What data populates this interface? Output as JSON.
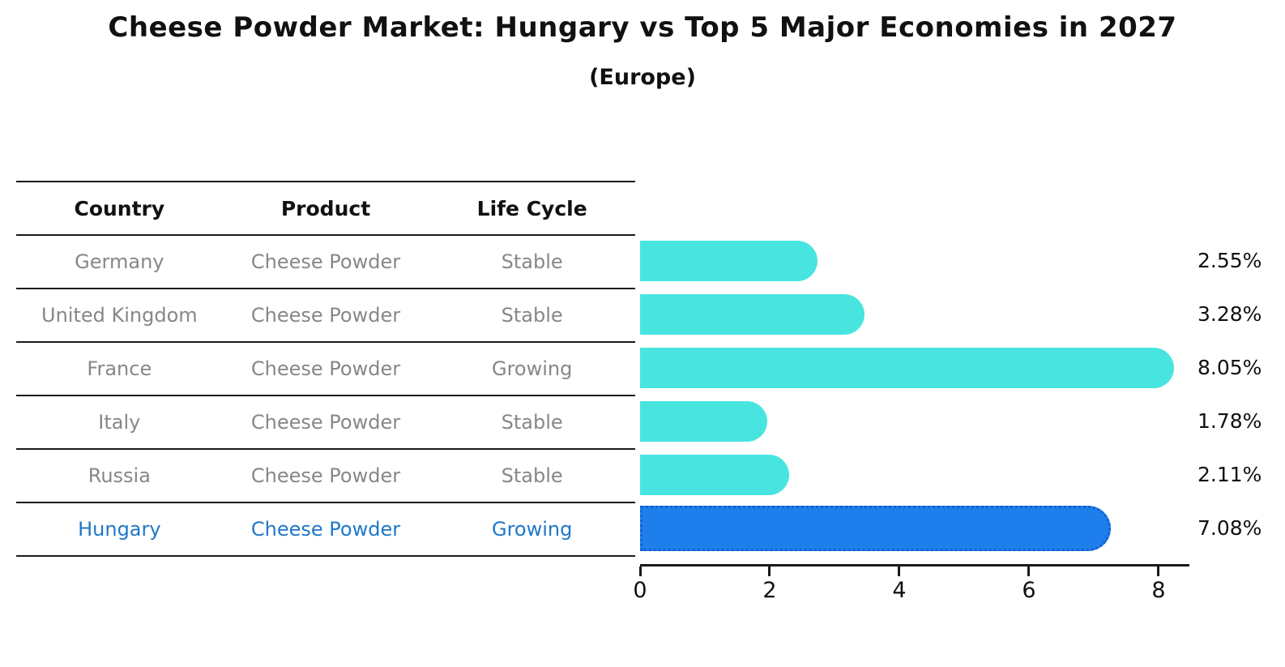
{
  "title": "Cheese Powder Market: Hungary vs Top 5 Major Economies in 2027",
  "subtitle": "(Europe)",
  "table": {
    "columns": [
      "Country",
      "Product",
      "Life Cycle"
    ],
    "rows": [
      {
        "country": "Germany",
        "product": "Cheese Powder",
        "life_cycle": "Stable",
        "highlight": false
      },
      {
        "country": "United Kingdom",
        "product": "Cheese Powder",
        "life_cycle": "Stable",
        "highlight": false
      },
      {
        "country": "France",
        "product": "Cheese Powder",
        "life_cycle": "Growing",
        "highlight": false
      },
      {
        "country": "Italy",
        "product": "Cheese Powder",
        "life_cycle": "Stable",
        "highlight": false
      },
      {
        "country": "Russia",
        "product": "Cheese Powder",
        "life_cycle": "Stable",
        "highlight": false
      },
      {
        "country": "Hungary",
        "product": "Cheese Powder",
        "life_cycle": "Growing",
        "highlight": true
      }
    ]
  },
  "chart_data": {
    "type": "bar",
    "orientation": "horizontal",
    "title": "Cheese Powder Market: Hungary vs Top 5 Major Economies in 2027",
    "subtitle": "(Europe)",
    "categories": [
      "Germany",
      "United Kingdom",
      "France",
      "Italy",
      "Russia",
      "Hungary"
    ],
    "values": [
      2.55,
      3.28,
      8.05,
      1.78,
      2.11,
      7.08
    ],
    "value_labels": [
      "2.55%",
      "3.28%",
      "8.05%",
      "1.78%",
      "2.11%",
      "7.08%"
    ],
    "x_ticks": [
      "0",
      "2",
      "4",
      "6",
      "8"
    ],
    "xlim": [
      0,
      8.48
    ],
    "grid": false,
    "legend": false,
    "highlight_index": 5
  },
  "colors": {
    "bar": "#48E5E0",
    "highlight_bar": "#1E7EEC",
    "highlight_bar_edge": "#1262D1",
    "highlight_text": "#1F77C8",
    "text": "#111111",
    "muted_text": "#878787",
    "axis": "#1a1a1a"
  }
}
